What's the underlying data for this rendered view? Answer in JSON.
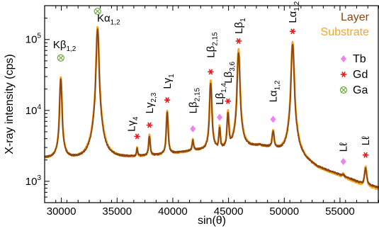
{
  "chart_data": {
    "type": "line",
    "xlabel": "sin(θ)",
    "ylabel": "X-ray intensity (cps)",
    "xlim": [
      28500,
      58500
    ],
    "ylim": [
      500,
      300000
    ],
    "yscale": "log",
    "x_ticks": [
      30000,
      35000,
      40000,
      45000,
      50000,
      55000
    ],
    "x_tick_labels": [
      "30000",
      "35000",
      "40000",
      "45000",
      "50000",
      "55000"
    ],
    "y_ticks": [
      1000,
      10000,
      100000
    ],
    "y_tick_labels": [
      {
        "base": "10",
        "exp": "3"
      },
      {
        "base": "10",
        "exp": "4"
      },
      {
        "base": "10",
        "exp": "5"
      }
    ],
    "colors": {
      "layer": "#8B4513",
      "substrate": "#F5A623",
      "tb": "#EE82EE",
      "gd": "#E41A1C",
      "ga": "#6AAA3A"
    },
    "legend_placement": "top-right",
    "series": [
      {
        "name": "Layer",
        "color": "#8B4513",
        "baseline": [
          [
            28500,
            2100
          ],
          [
            32000,
            2000
          ],
          [
            35000,
            2100
          ],
          [
            38500,
            2300
          ],
          [
            40500,
            2500
          ],
          [
            42000,
            2700
          ],
          [
            44000,
            2600
          ],
          [
            46500,
            2900
          ],
          [
            47800,
            3100
          ],
          [
            49000,
            2800
          ],
          [
            50000,
            2400
          ],
          [
            53000,
            1500
          ],
          [
            55000,
            1200
          ],
          [
            57000,
            900
          ],
          [
            58500,
            800
          ]
        ],
        "peaks": [
          {
            "x": 29950,
            "y": 28000,
            "w": 100
          },
          {
            "x": 33250,
            "y": 140000,
            "w": 110
          },
          {
            "x": 36800,
            "y": 2800,
            "w": 70
          },
          {
            "x": 37900,
            "y": 4200,
            "w": 90
          },
          {
            "x": 39500,
            "y": 9300,
            "w": 90
          },
          {
            "x": 41800,
            "y": 3700,
            "w": 80
          },
          {
            "x": 43400,
            "y": 24000,
            "w": 100
          },
          {
            "x": 44200,
            "y": 5500,
            "w": 80
          },
          {
            "x": 44950,
            "y": 9000,
            "w": 90
          },
          {
            "x": 45900,
            "y": 65000,
            "w": 110
          },
          {
            "x": 49000,
            "y": 4800,
            "w": 110
          },
          {
            "x": 50750,
            "y": 85000,
            "w": 120
          },
          {
            "x": 55300,
            "y": 1200,
            "w": 100
          },
          {
            "x": 57300,
            "y": 1500,
            "w": 120
          }
        ]
      },
      {
        "name": "Substrate",
        "color": "#F5A623",
        "baseline": [
          [
            28500,
            2050
          ],
          [
            32000,
            1950
          ],
          [
            35000,
            2050
          ],
          [
            38500,
            2250
          ],
          [
            40500,
            2450
          ],
          [
            42000,
            2650
          ],
          [
            44000,
            2550
          ],
          [
            46500,
            2850
          ],
          [
            47800,
            3050
          ],
          [
            49000,
            2750
          ],
          [
            50000,
            2350
          ],
          [
            53000,
            1450
          ],
          [
            55000,
            1150
          ],
          [
            57000,
            850
          ],
          [
            58500,
            750
          ]
        ],
        "peaks": [
          {
            "x": 29950,
            "y": 29000,
            "w": 105
          },
          {
            "x": 33250,
            "y": 150000,
            "w": 115
          },
          {
            "x": 36800,
            "y": 2900,
            "w": 75
          },
          {
            "x": 37900,
            "y": 4400,
            "w": 95
          },
          {
            "x": 39500,
            "y": 9800,
            "w": 95
          },
          {
            "x": 41800,
            "y": 3800,
            "w": 85
          },
          {
            "x": 43400,
            "y": 26000,
            "w": 105
          },
          {
            "x": 44200,
            "y": 5700,
            "w": 85
          },
          {
            "x": 44950,
            "y": 9500,
            "w": 95
          },
          {
            "x": 45900,
            "y": 72000,
            "w": 115
          },
          {
            "x": 49000,
            "y": 5000,
            "w": 115
          },
          {
            "x": 50750,
            "y": 92000,
            "w": 125
          },
          {
            "x": 55300,
            "y": 1250,
            "w": 105
          },
          {
            "x": 57300,
            "y": 1600,
            "w": 125
          }
        ]
      }
    ],
    "legend_lines": [
      {
        "label": "Layer",
        "color": "#8B4513"
      },
      {
        "label": "Substrate",
        "color": "#F5A623"
      }
    ],
    "legend_markers": [
      {
        "label": "Tb",
        "marker": "diamond",
        "color": "#EE82EE"
      },
      {
        "label": "Gd",
        "marker": "asterisk",
        "color": "#E41A1C"
      },
      {
        "label": "Ga",
        "marker": "circle-x",
        "color": "#6AAA3A"
      }
    ],
    "markers": [
      {
        "type": "circle-x",
        "x": 29950,
        "y": 55000
      },
      {
        "type": "circle-x",
        "x": 33250,
        "y": 250000
      },
      {
        "type": "asterisk",
        "x": 36800,
        "y": 4300
      },
      {
        "type": "asterisk",
        "x": 37900,
        "y": 6200
      },
      {
        "type": "asterisk",
        "x": 39500,
        "y": 14000
      },
      {
        "type": "diamond",
        "x": 41800,
        "y": 5500
      },
      {
        "type": "asterisk",
        "x": 43400,
        "y": 35000
      },
      {
        "type": "diamond",
        "x": 44200,
        "y": 8000
      },
      {
        "type": "asterisk",
        "x": 44950,
        "y": 13500
      },
      {
        "type": "asterisk",
        "x": 45900,
        "y": 95000
      },
      {
        "type": "diamond",
        "x": 49000,
        "y": 7500
      },
      {
        "type": "asterisk",
        "x": 50750,
        "y": 130000
      },
      {
        "type": "diamond",
        "x": 55300,
        "y": 1900
      },
      {
        "type": "asterisk",
        "x": 57300,
        "y": 2350
      }
    ],
    "annotations": [
      {
        "base": "Kβ",
        "sub": "1,2",
        "x": 29950,
        "y": 85000
      },
      {
        "base": "Kα",
        "sub": "1,2",
        "x": 33900,
        "y": 200000
      },
      {
        "base": "Lγ",
        "sub": "4",
        "x": 36300,
        "y": 5000
      },
      {
        "base": "Lγ",
        "sub": "2,3",
        "x": 37900,
        "y": 9000
      },
      {
        "base": "Lγ",
        "sub": "1",
        "x": 39500,
        "y": 20000
      },
      {
        "base": "Lβ",
        "sub": "2,15",
        "x": 41800,
        "y": 9000
      },
      {
        "base": "Lβ",
        "sub": "2,15",
        "x": 43400,
        "y": 55000
      },
      {
        "base": "Lβ",
        "sub": "1,4",
        "x": 44200,
        "y": 12000
      },
      {
        "base": "Lβ",
        "sub": "3,6",
        "x": 44950,
        "y": 24000
      },
      {
        "base": "Lβ",
        "sub": "1",
        "x": 45900,
        "y": 120000
      },
      {
        "base": "Lα",
        "sub": "1,2",
        "x": 49000,
        "y": 13000
      },
      {
        "base": "Lα",
        "sub": "1,2",
        "x": 50750,
        "y": 170000
      },
      {
        "base": "Lℓ",
        "sub": "",
        "x": 55300,
        "y": 2600
      },
      {
        "base": "Lℓ",
        "sub": "",
        "x": 57300,
        "y": 3200
      }
    ]
  }
}
